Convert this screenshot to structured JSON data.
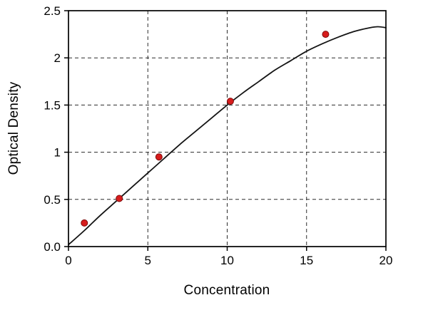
{
  "chart_data": {
    "type": "scatter",
    "title": "",
    "xlabel": "Concentration",
    "ylabel": "Optical Density",
    "xlim": [
      0,
      20
    ],
    "ylim": [
      0,
      2.5
    ],
    "x_ticks": {
      "values": [
        0,
        5,
        10,
        15,
        20
      ],
      "labels": [
        "0",
        "5",
        "10",
        "15",
        "20"
      ]
    },
    "y_ticks": {
      "values": [
        0,
        0.5,
        1,
        1.5,
        2,
        2.5
      ],
      "labels": [
        "0.0",
        "0.5",
        "1",
        "1.5",
        "2",
        "2.5"
      ]
    },
    "grid": {
      "x_values": [
        5,
        10,
        15
      ],
      "y_values": [
        0.5,
        1,
        1.5,
        2
      ],
      "style": "dashed",
      "on": true
    },
    "legend": "none",
    "series": [
      {
        "name": "measured-points",
        "type": "scatter",
        "color": "#d71d1d",
        "edge_color": "#7e0b0b",
        "marker_radius": 4.5,
        "points": [
          [
            1.0,
            0.25
          ],
          [
            3.2,
            0.51
          ],
          [
            5.7,
            0.95
          ],
          [
            10.2,
            1.54
          ],
          [
            16.2,
            2.25
          ]
        ]
      },
      {
        "name": "fitted-curve",
        "type": "line",
        "color": "#141414",
        "width": 1.8,
        "points": [
          [
            0,
            0.02
          ],
          [
            1,
            0.17
          ],
          [
            2,
            0.33
          ],
          [
            3,
            0.48
          ],
          [
            4,
            0.63
          ],
          [
            5,
            0.78
          ],
          [
            6,
            0.93
          ],
          [
            7,
            1.08
          ],
          [
            8,
            1.22
          ],
          [
            9,
            1.36
          ],
          [
            10,
            1.5
          ],
          [
            11,
            1.63
          ],
          [
            12,
            1.75
          ],
          [
            13,
            1.87
          ],
          [
            14,
            1.97
          ],
          [
            15,
            2.07
          ],
          [
            16,
            2.15
          ],
          [
            17,
            2.22
          ],
          [
            18,
            2.28
          ],
          [
            19,
            2.32
          ],
          [
            19.5,
            2.33
          ],
          [
            20,
            2.32
          ]
        ]
      }
    ],
    "colors": {
      "grid": "#2b2b2b",
      "frame": "#000000",
      "background": "#ffffff",
      "text": "#000000"
    }
  }
}
